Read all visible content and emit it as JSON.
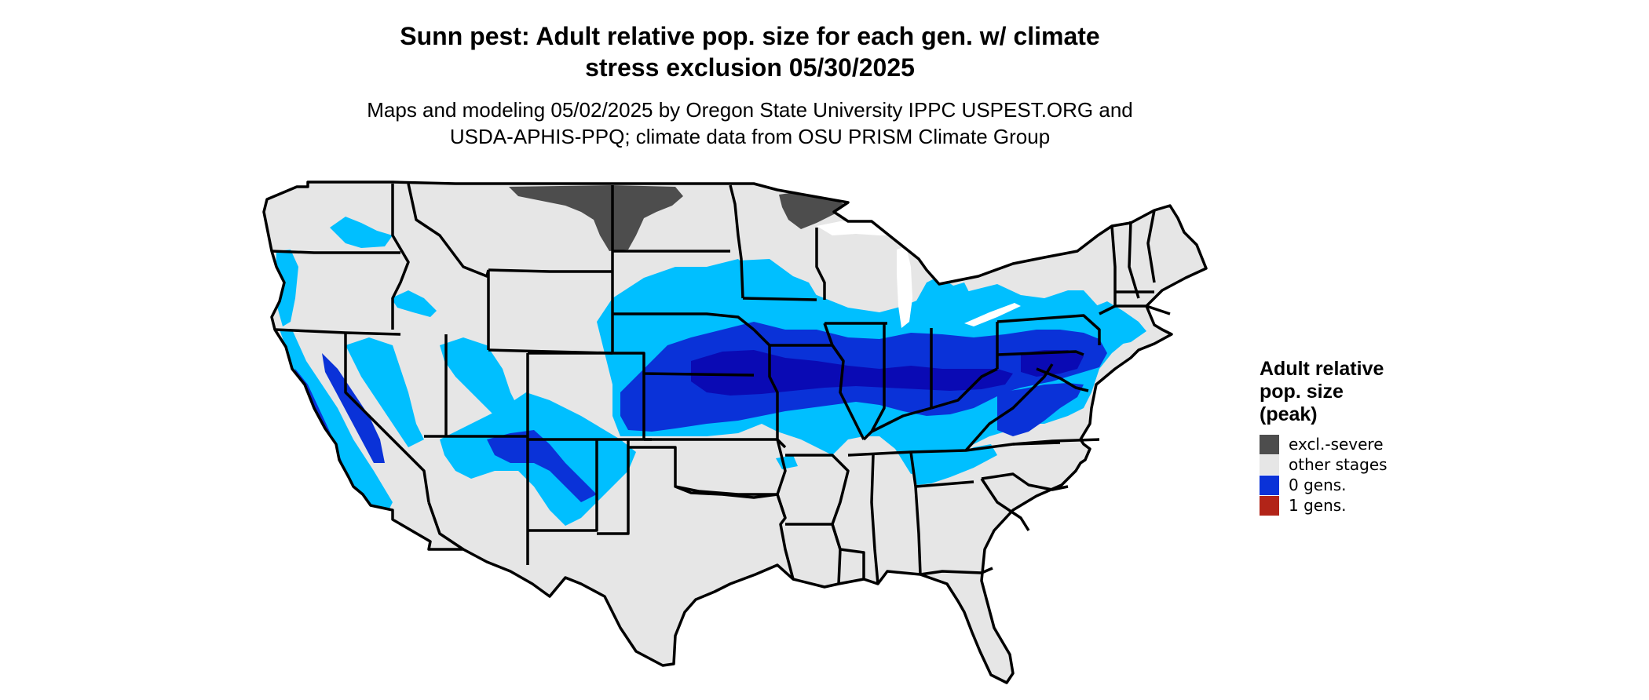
{
  "title": "Sunn pest: Adult relative pop. size for each gen. w/ climate\nstress exclusion 05/30/2025",
  "subtitle": "Maps and modeling 05/02/2025 by Oregon State University IPPC USPEST.ORG and\nUSDA-APHIS-PPQ; climate data from OSU PRISM Climate Group",
  "legend": {
    "title": "Adult relative\npop. size\n(peak)",
    "items": [
      {
        "label": "excl.-severe",
        "color": "#4d4d4d"
      },
      {
        "label": "other stages",
        "color": "#e6e6e6"
      },
      {
        "label": "0 gens.",
        "color": "#0a32d8"
      },
      {
        "label": "1 gens.",
        "color": "#b22418"
      }
    ]
  },
  "map": {
    "region": "contiguous United States",
    "colors": {
      "land": "#e6e6e6",
      "excluded": "#4d4d4d",
      "light_blue": "#00bfff",
      "medium_blue": "#0a32d8",
      "dark_blue": "#0a0ab4",
      "border": "#000000"
    }
  }
}
